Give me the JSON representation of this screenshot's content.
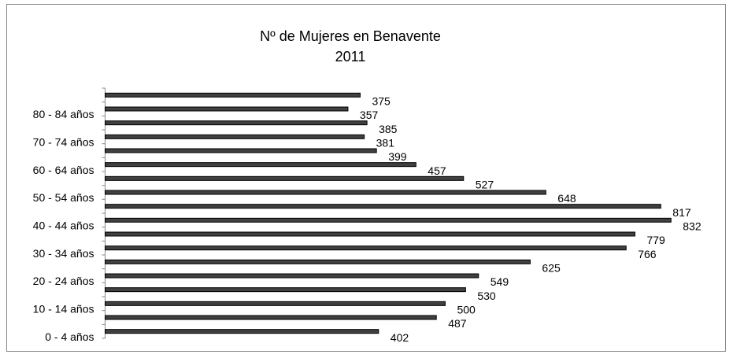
{
  "chart_data": {
    "type": "bar",
    "orientation": "horizontal",
    "title": "Nº de Mujeres en Benavente",
    "subtitle": "2011",
    "categories": [
      "0 - 4 años",
      null,
      "10 - 14 años",
      null,
      "20 - 24 años",
      null,
      "30 - 34 años",
      null,
      "40 - 44 años",
      null,
      "50 - 54 años",
      null,
      "60 - 64 años",
      null,
      "70 - 74 años",
      null,
      "80 - 84 años",
      null
    ],
    "values": [
      402,
      487,
      500,
      530,
      549,
      625,
      766,
      779,
      832,
      817,
      648,
      527,
      457,
      399,
      381,
      385,
      357,
      375
    ],
    "color": "#404040",
    "xlim": [
      0,
      900
    ]
  }
}
